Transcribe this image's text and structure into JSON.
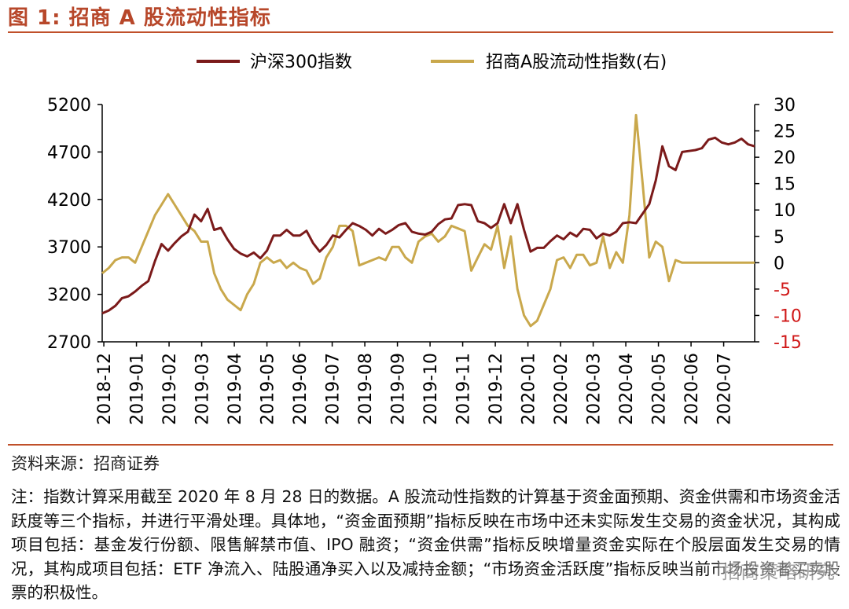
{
  "figure_title": "图 1:  招商 A 股流动性指标",
  "source_text": "资料来源：招商证券",
  "note_text": "注：指数计算采用截至 2020 年 8 月 28 日的数据。A 股流动性指数的计算基于资金面预期、资金供需和市场资金活跃度等三个指标，并进行平滑处理。具体地，“资金面预期”指标反映在市场中还未实际发生交易的资金状况，其构成项目包括：基金发行份额、限售解禁市值、IPO 融资；“资金供需”指标反映增量资金实际在个股层面发生交易的情况，其构成项目包括：ETF 净流入、陆股通净买入以及减持金额；“市场资金活跃度”指标反映当前市场投资者买卖股票的积极性。",
  "watermark_text": "招商策略研究",
  "colors": {
    "title": "#b7472a",
    "rule": "#c0502a",
    "series1": "#7b1a1a",
    "series2": "#c9a84c",
    "right_axis": "#d01818"
  },
  "chart_data": {
    "type": "line",
    "legend": [
      "沪深300指数",
      "招商A股流动性指数(右)"
    ],
    "x_tick_labels": [
      "2018-12",
      "2019-01",
      "2019-02",
      "2019-03",
      "2019-04",
      "2019-05",
      "2019-06",
      "2019-07",
      "2019-08",
      "2019-09",
      "2019-10",
      "2019-11",
      "2019-12",
      "2020-01",
      "2020-02",
      "2020-03",
      "2020-04",
      "2020-05",
      "2020-06",
      "2020-07"
    ],
    "left_axis": {
      "min": 2700,
      "max": 5200,
      "ticks": [
        "5200",
        "4700",
        "4200",
        "3700",
        "3200",
        "2700"
      ]
    },
    "right_axis": {
      "min": -15,
      "max": 30,
      "ticks": [
        "30",
        "25",
        "20",
        "15",
        "10",
        "5",
        "0",
        "-5",
        "-10",
        "-15"
      ]
    },
    "week_index_range": [
      0,
      99
    ],
    "series": [
      {
        "name": "沪深300指数",
        "axis": "left",
        "x": [
          0,
          1,
          2,
          3,
          4,
          5,
          6,
          7,
          8,
          9,
          10,
          11,
          12,
          13,
          14,
          15,
          16,
          17,
          18,
          19,
          20,
          21,
          22,
          23,
          24,
          25,
          26,
          27,
          28,
          29,
          30,
          31,
          32,
          33,
          34,
          35,
          36,
          37,
          38,
          39,
          40,
          41,
          42,
          43,
          44,
          45,
          46,
          47,
          48,
          49,
          50,
          51,
          52,
          53,
          54,
          55,
          56,
          57,
          58,
          59,
          60,
          61,
          62,
          63,
          64,
          65,
          66,
          67,
          68,
          69,
          70,
          71,
          72,
          73,
          74,
          75,
          76,
          77,
          78,
          79,
          80,
          81,
          82,
          83,
          84,
          85,
          86,
          87,
          88,
          89,
          90,
          91,
          92,
          93,
          94,
          95,
          96,
          97,
          98,
          99
        ],
        "values": [
          3000,
          3030,
          3080,
          3160,
          3180,
          3230,
          3290,
          3340,
          3550,
          3730,
          3660,
          3740,
          3810,
          3860,
          4040,
          3970,
          4100,
          3880,
          3900,
          3780,
          3680,
          3630,
          3600,
          3640,
          3580,
          3660,
          3820,
          3820,
          3880,
          3820,
          3820,
          3870,
          3740,
          3650,
          3720,
          3820,
          3800,
          3880,
          3950,
          3920,
          3880,
          3820,
          3890,
          3840,
          3880,
          3930,
          3950,
          3860,
          3840,
          3830,
          3860,
          3940,
          3990,
          4000,
          4140,
          4150,
          4140,
          3970,
          3950,
          3900,
          3950,
          4150,
          3950,
          4150,
          3880,
          3650,
          3690,
          3690,
          3760,
          3820,
          3780,
          3850,
          3810,
          3890,
          3880,
          3790,
          3840,
          3820,
          3860,
          3950,
          3960,
          3950,
          4050,
          4150,
          4400,
          4760,
          4550,
          4510,
          4700,
          4710,
          4720,
          4740,
          4830,
          4850,
          4800,
          4780,
          4800,
          4840,
          4780,
          4760
        ]
      },
      {
        "name": "招商A股流动性指数(右)",
        "axis": "right",
        "x": [
          0,
          1,
          2,
          3,
          4,
          5,
          6,
          7,
          8,
          9,
          10,
          11,
          12,
          13,
          14,
          15,
          16,
          17,
          18,
          19,
          20,
          21,
          22,
          23,
          24,
          25,
          26,
          27,
          28,
          29,
          30,
          31,
          32,
          33,
          34,
          35,
          36,
          37,
          38,
          39,
          40,
          41,
          42,
          43,
          44,
          45,
          46,
          47,
          48,
          49,
          50,
          51,
          52,
          53,
          54,
          55,
          56,
          57,
          58,
          59,
          60,
          61,
          62,
          63,
          64,
          65,
          66,
          67,
          68,
          69,
          70,
          71,
          72,
          73,
          74,
          75,
          76,
          77,
          78,
          79,
          80,
          81,
          82,
          83,
          84,
          85,
          86,
          87,
          88,
          89,
          90,
          91,
          92,
          93,
          94,
          95,
          96,
          97,
          98,
          99
        ],
        "values": [
          -2,
          -1,
          0.5,
          1,
          1,
          0,
          3,
          6,
          9,
          11,
          13,
          11,
          9,
          7,
          6,
          4,
          4,
          -2,
          -5,
          -7,
          -8,
          -9,
          -6,
          -4,
          0,
          1,
          0,
          0.5,
          -1,
          0,
          -1,
          -1.5,
          -4,
          -3,
          1,
          3,
          7,
          7,
          6,
          -0.5,
          0,
          0.5,
          1,
          0.5,
          3,
          3,
          1,
          0,
          4,
          5,
          5.5,
          4,
          5,
          7,
          6.5,
          6,
          -1.5,
          1,
          3.5,
          2.5,
          7,
          -1,
          5,
          -5,
          -10,
          -12,
          -11,
          -8,
          -5,
          0.5,
          1,
          -1,
          1.5,
          1.5,
          -0.5,
          0,
          5,
          -1,
          2,
          0,
          9,
          28,
          15,
          1,
          4,
          3,
          -3.5,
          0.5,
          0,
          0,
          0,
          0,
          0,
          0,
          0,
          0,
          0,
          0,
          0,
          0
        ]
      }
    ]
  }
}
